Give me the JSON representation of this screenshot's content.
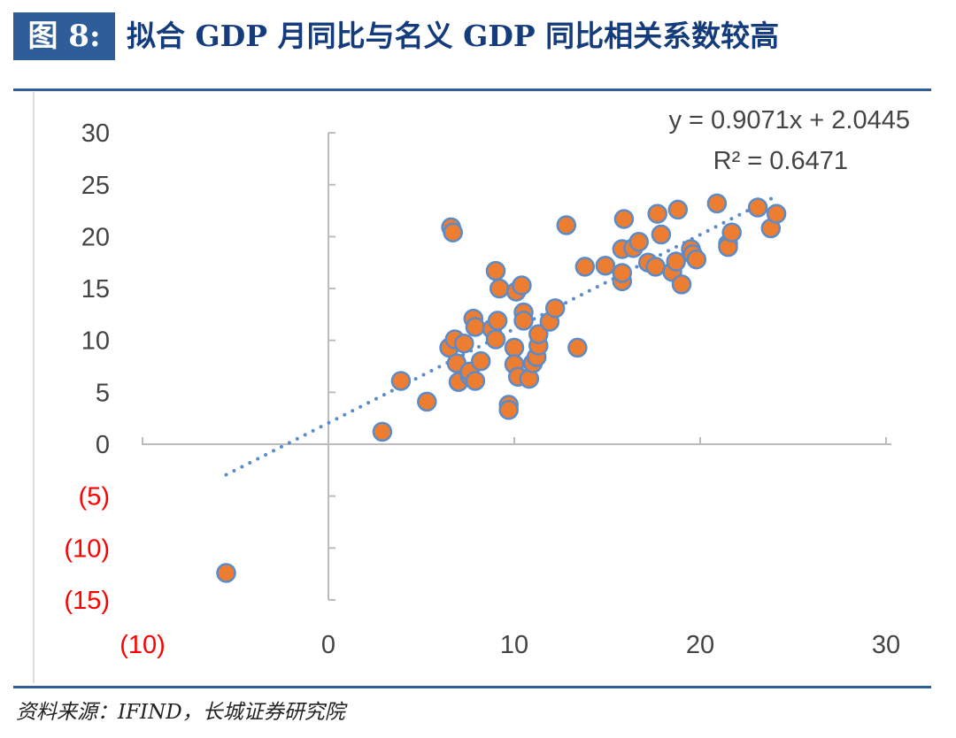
{
  "header": {
    "figure_label": "图 8:",
    "title": "拟合 GDP 月同比与名义 GDP 同比相关系数较高"
  },
  "footer": {
    "source": "资料来源：IFIND，长城证券研究院"
  },
  "colors": {
    "accent": "#2E5E9A",
    "title": "#143C7C",
    "point_fill": "#ED7D31",
    "point_stroke": "#5B8BC8",
    "negative_label": "#FF0000"
  },
  "chart_data": {
    "type": "scatter",
    "xlim": [
      -10,
      30
    ],
    "ylim": [
      -15,
      30
    ],
    "x_ticks": [
      {
        "v": -10,
        "label": "(10)"
      },
      {
        "v": 0,
        "label": "0"
      },
      {
        "v": 10,
        "label": "10"
      },
      {
        "v": 20,
        "label": "20"
      },
      {
        "v": 30,
        "label": "30"
      }
    ],
    "y_ticks": [
      {
        "v": 30,
        "label": "30"
      },
      {
        "v": 25,
        "label": "25"
      },
      {
        "v": 20,
        "label": "20"
      },
      {
        "v": 15,
        "label": "15"
      },
      {
        "v": 10,
        "label": "10"
      },
      {
        "v": 5,
        "label": "5"
      },
      {
        "v": 0,
        "label": "0"
      },
      {
        "v": -5,
        "label": "(5)"
      },
      {
        "v": -10,
        "label": "(10)"
      },
      {
        "v": -15,
        "label": "(15)"
      }
    ],
    "grid": false,
    "trendline": {
      "slope": 0.9071,
      "intercept": 2.0445,
      "x_range": [
        -5.5,
        24.1
      ],
      "equation": "y = 0.9071x + 2.0445",
      "r_squared": "R² = 0.6471"
    },
    "points": [
      [
        -5.5,
        -12.4
      ],
      [
        2.9,
        1.2
      ],
      [
        3.9,
        6.1
      ],
      [
        5.3,
        4.1
      ],
      [
        6.6,
        20.9
      ],
      [
        6.7,
        20.4
      ],
      [
        6.5,
        9.3
      ],
      [
        6.8,
        10.1
      ],
      [
        6.9,
        7.8
      ],
      [
        7.0,
        6.0
      ],
      [
        7.3,
        9.7
      ],
      [
        7.6,
        6.6
      ],
      [
        7.8,
        12.1
      ],
      [
        7.9,
        11.3
      ],
      [
        7.6,
        7.0
      ],
      [
        7.9,
        6.1
      ],
      [
        8.2,
        8.0
      ],
      [
        8.8,
        11.1
      ],
      [
        9.0,
        10.1
      ],
      [
        9.0,
        16.7
      ],
      [
        9.1,
        11.9
      ],
      [
        9.2,
        15.0
      ],
      [
        9.7,
        3.8
      ],
      [
        9.7,
        3.3
      ],
      [
        10.0,
        9.3
      ],
      [
        10.0,
        7.7
      ],
      [
        10.1,
        14.7
      ],
      [
        10.4,
        15.3
      ],
      [
        10.2,
        6.5
      ],
      [
        10.5,
        12.7
      ],
      [
        10.5,
        11.9
      ],
      [
        10.8,
        6.3
      ],
      [
        11.0,
        7.8
      ],
      [
        11.2,
        8.4
      ],
      [
        11.3,
        9.5
      ],
      [
        11.3,
        10.6
      ],
      [
        11.9,
        11.8
      ],
      [
        12.2,
        13.1
      ],
      [
        12.8,
        21.1
      ],
      [
        13.4,
        9.3
      ],
      [
        13.8,
        17.1
      ],
      [
        14.9,
        17.2
      ],
      [
        15.8,
        15.7
      ],
      [
        15.8,
        18.8
      ],
      [
        15.9,
        21.7
      ],
      [
        15.8,
        16.5
      ],
      [
        16.4,
        18.9
      ],
      [
        16.7,
        19.5
      ],
      [
        17.2,
        17.5
      ],
      [
        17.6,
        17.1
      ],
      [
        17.7,
        22.2
      ],
      [
        17.9,
        20.2
      ],
      [
        18.5,
        16.6
      ],
      [
        18.7,
        17.6
      ],
      [
        18.8,
        22.6
      ],
      [
        19.0,
        15.4
      ],
      [
        19.5,
        18.8
      ],
      [
        19.6,
        18.3
      ],
      [
        19.8,
        17.8
      ],
      [
        20.9,
        23.2
      ],
      [
        21.5,
        19.3
      ],
      [
        21.5,
        19.0
      ],
      [
        21.7,
        20.4
      ],
      [
        23.1,
        22.8
      ],
      [
        23.8,
        20.8
      ],
      [
        24.1,
        22.2
      ]
    ]
  }
}
